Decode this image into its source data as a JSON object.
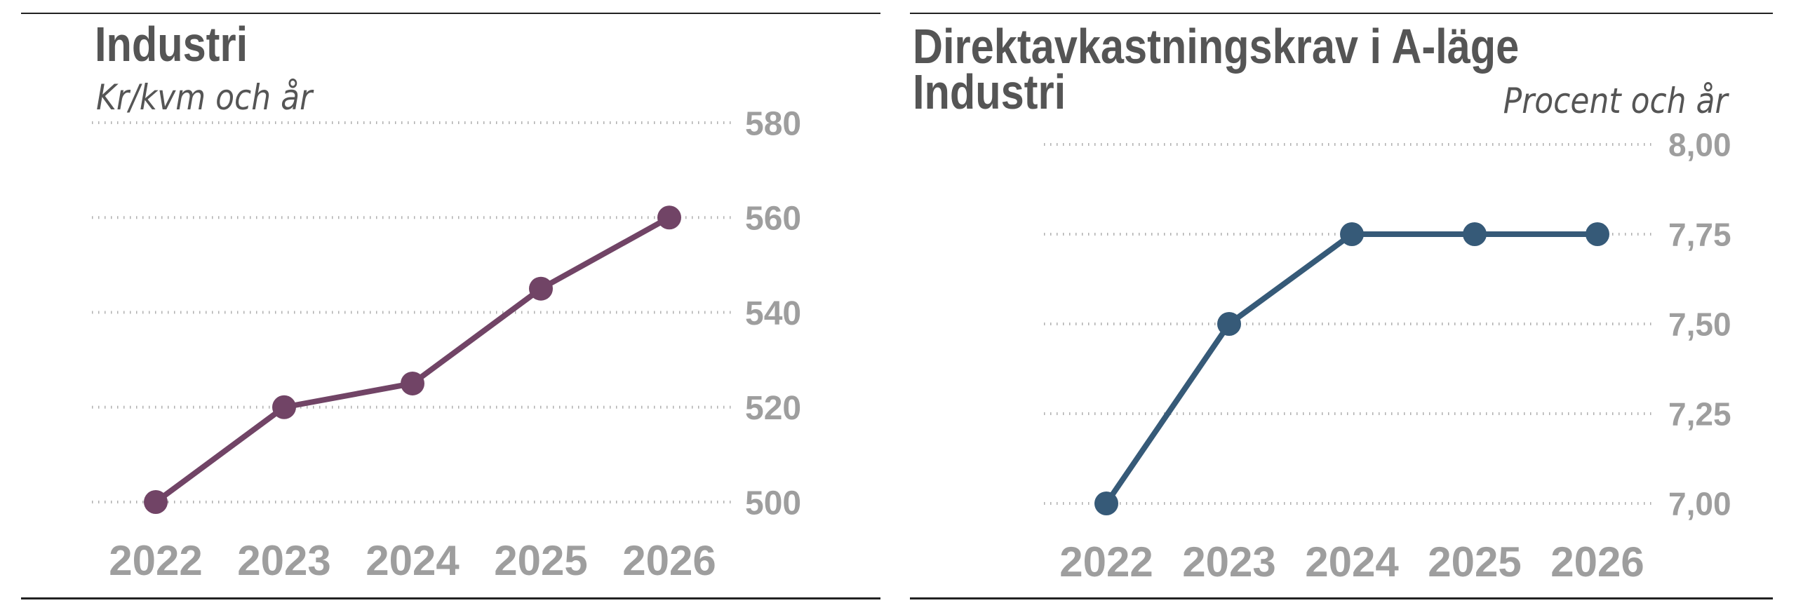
{
  "chart_data": [
    {
      "type": "line",
      "title": "Industri",
      "subtitle": "Kr/kvm och år",
      "xlabel": "",
      "ylabel": "Kr/kvm och år",
      "categories": [
        "2022",
        "2023",
        "2024",
        "2025",
        "2026"
      ],
      "series": [
        {
          "name": "Industri",
          "values": [
            500,
            520,
            525,
            545,
            560
          ],
          "color": "#714466"
        }
      ],
      "ylim": [
        500,
        580
      ],
      "yticks": [
        580,
        560,
        540,
        520,
        500
      ],
      "ytick_labels": [
        "580",
        "560",
        "540",
        "520",
        "500"
      ],
      "grid": true,
      "gridline_style": "dotted",
      "y_axis_side": "right",
      "legend": "none"
    },
    {
      "type": "line",
      "title": "Direktavkastningskrav i A-läge",
      "title_line2": "Industri",
      "subtitle": "Procent och år",
      "xlabel": "",
      "ylabel": "Procent och år",
      "categories": [
        "2022",
        "2023",
        "2024",
        "2025",
        "2026"
      ],
      "series": [
        {
          "name": "Direktavkastningskrav i A-läge Industri",
          "values": [
            7.0,
            7.5,
            7.75,
            7.75,
            7.75
          ],
          "color": "#365a78"
        }
      ],
      "ylim": [
        7.0,
        8.0
      ],
      "yticks": [
        8.0,
        7.75,
        7.5,
        7.25,
        7.0
      ],
      "ytick_labels": [
        "8,00",
        "7,75",
        "7,50",
        "7,25",
        "7,00"
      ],
      "grid": true,
      "gridline_style": "dotted",
      "y_axis_side": "right",
      "legend": "none"
    }
  ],
  "style": {
    "rule_color": "#222222",
    "title_color": "#555555",
    "label_color": "#9e9e9e",
    "grid_color": "#b0b0b0"
  }
}
